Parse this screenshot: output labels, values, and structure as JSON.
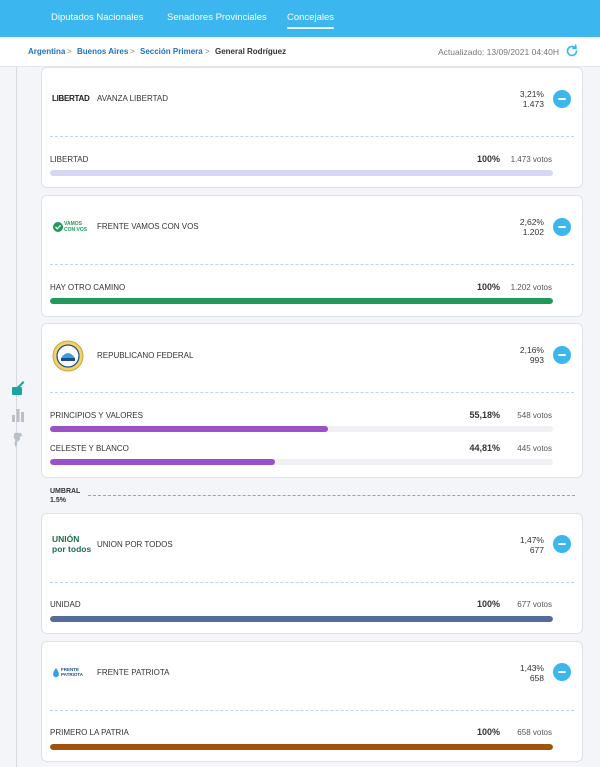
{
  "nav": {
    "tabs": [
      {
        "label": "Diputados Nacionales"
      },
      {
        "label": "Senadores Provinciales"
      },
      {
        "label": "Concejales"
      }
    ]
  },
  "breadcrumb": {
    "items": [
      "Argentina",
      "Buenos Aires",
      "Sección Primera",
      "General Rodríguez"
    ],
    "separator": ">"
  },
  "updated": "Actualizado: 13/09/2021 04:40H",
  "umbral": {
    "label": "UMBRAL",
    "value": "1.5%"
  },
  "parties": [
    {
      "logo_text": "LIBERTAD",
      "name": "AVANZA LIBERTAD",
      "pct": "3,21%",
      "votes": "1.473",
      "lists": [
        {
          "name": "LIBERTAD",
          "pct": "100%",
          "votes": "1.473 votos",
          "share": 1.0,
          "color": "#d6d6f5"
        }
      ]
    },
    {
      "logo_text": "VAMOS CON VOS",
      "name": "FRENTE VAMOS CON VOS",
      "pct": "2,62%",
      "votes": "1.202",
      "lists": [
        {
          "name": "HAY OTRO CAMINO",
          "pct": "100%",
          "votes": "1.202 votos",
          "share": 1.0,
          "color": "#1e9a5a"
        }
      ]
    },
    {
      "logo_text": "",
      "name": "REPUBLICANO FEDERAL",
      "pct": "2,16%",
      "votes": "993",
      "lists": [
        {
          "name": "PRINCIPIOS Y VALORES",
          "pct": "55,18%",
          "votes": "548 votos",
          "share": 0.5518,
          "color": "#9b4fc8"
        },
        {
          "name": "CELESTE Y BLANCO",
          "pct": "44,81%",
          "votes": "445 votos",
          "share": 0.4481,
          "color": "#9b4fc8"
        }
      ]
    },
    {
      "logo_text": "UNIÓN por todos",
      "name": "UNION POR TODOS",
      "pct": "1,47%",
      "votes": "677",
      "lists": [
        {
          "name": "UNIDAD",
          "pct": "100%",
          "votes": "677 votos",
          "share": 1.0,
          "color": "#556b99"
        }
      ]
    },
    {
      "logo_text": "FRENTE PATRIOTA",
      "name": "FRENTE PATRIOTA",
      "pct": "1,43%",
      "votes": "658",
      "lists": [
        {
          "name": "PRIMERO LA PATRIA",
          "pct": "100%",
          "votes": "658 votos",
          "share": 1.0,
          "color": "#a0520e"
        }
      ]
    }
  ],
  "colors": {
    "accent": "#3bb6ee",
    "link": "#1e73be"
  },
  "icons": [
    "refresh-icon",
    "vote-box-icon",
    "bar-chart-icon",
    "map-icon",
    "minus-icon"
  ]
}
